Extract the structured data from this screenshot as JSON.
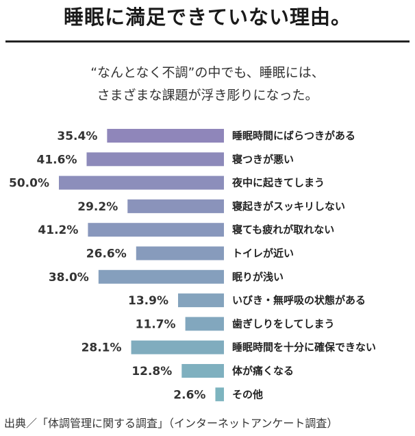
{
  "title": "睡眠に満足できていない理由。",
  "subtitle_lines": [
    "“なんとなく不調”の中でも、睡眠には、",
    "さまざまな課題が浮き彫りになった。"
  ],
  "footer": "出典／「体調管理に関する調査」（インターネットアンケート調査）",
  "colors": {
    "bar_top": "#8f86ba",
    "bar_bottom": "#7db4bf"
  },
  "chart_data": {
    "type": "bar",
    "orientation": "horizontal",
    "unit": "%",
    "xlim": [
      0,
      50
    ],
    "categories": [
      "睡眠時間にばらつきがある",
      "寝つきが悪い",
      "夜中に起きてしまう",
      "寝起きがスッキリしない",
      "寝ても疲れが取れない",
      "トイレが近い",
      "眠りが浅い",
      "いびき・無呼吸の状態がある",
      "歯ぎしりをしてしまう",
      "睡眠時間を十分に確保できない",
      "体が痛くなる",
      "その他"
    ],
    "values": [
      35.4,
      41.6,
      50.0,
      29.2,
      41.2,
      26.6,
      38.0,
      13.9,
      11.7,
      28.1,
      12.8,
      2.6
    ],
    "value_labels": [
      "35.4%",
      "41.6%",
      "50.0%",
      "29.2%",
      "41.2%",
      "26.6%",
      "38.0%",
      "13.9%",
      "11.7%",
      "28.1%",
      "12.8%",
      "2.6%"
    ]
  }
}
